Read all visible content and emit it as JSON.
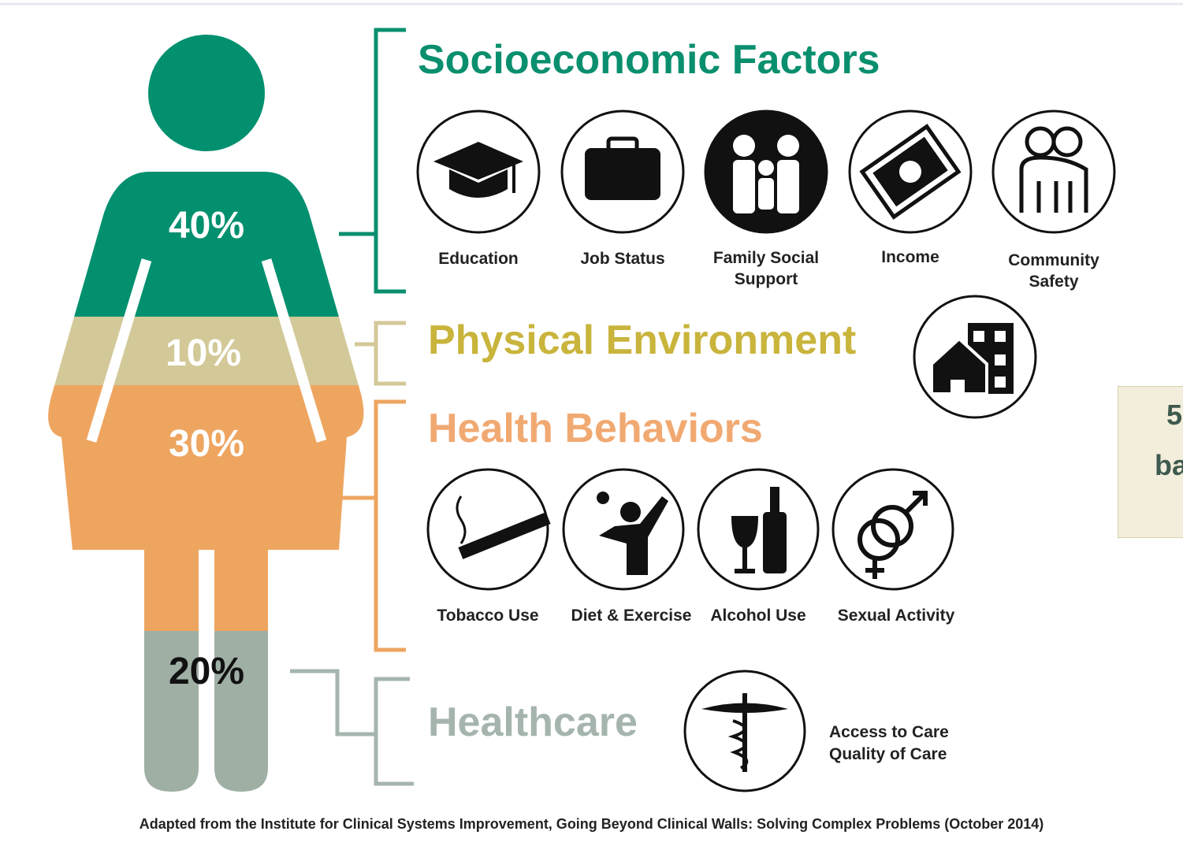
{
  "figure": {
    "segments": [
      "40%",
      "10%",
      "30%",
      "20%"
    ]
  },
  "sections": [
    {
      "title": "Socioeconomic Factors",
      "items": [
        "Education",
        "Job Status",
        "Family Social Support",
        "Income",
        "Community Safety"
      ]
    },
    {
      "title": "Physical Environment"
    },
    {
      "title": "Health Behaviors",
      "items": [
        "Tobacco Use",
        "Diet & Exercise",
        "Alcohol Use",
        "Sexual Activity"
      ]
    },
    {
      "title": "Healthcare",
      "items": [
        "Access to Care",
        "Quality of Care"
      ]
    }
  ],
  "footnote": "Adapted from the Institute for Clinical Systems Improvement, Going Beyond Clinical Walls: Solving Complex Problems (October 2014)",
  "side_panel": {
    "lines": [
      "5",
      "ba"
    ]
  }
}
